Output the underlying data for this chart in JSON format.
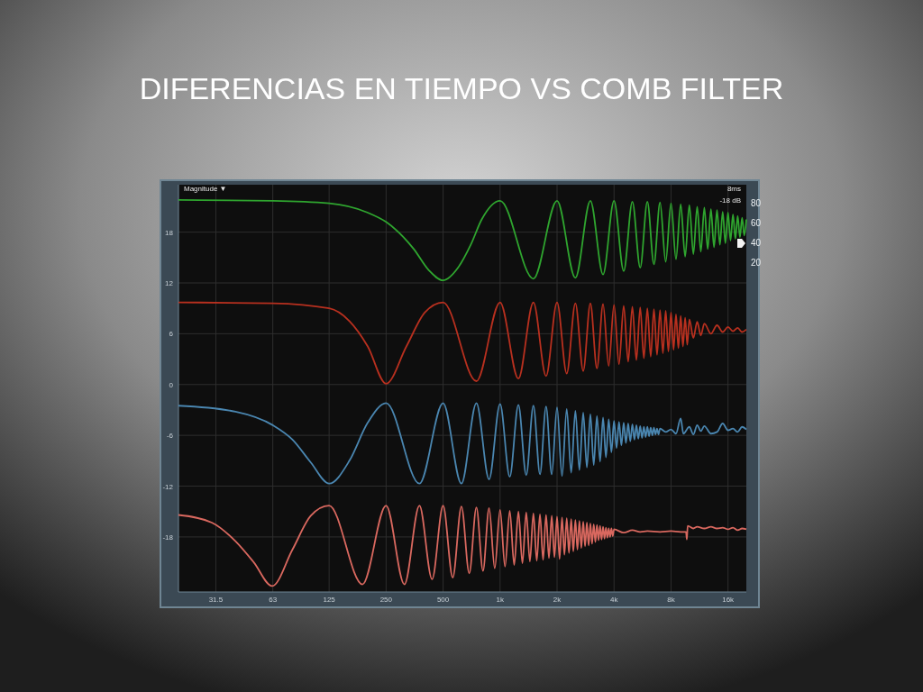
{
  "chart_data": {
    "type": "line",
    "title": "DIFERENCIAS EN TIEMPO VS COMB FILTER",
    "annotations": [
      "Magnitude ▼",
      "8ms",
      "-18 dB"
    ],
    "log": "x",
    "grid": true,
    "xlim": [
      20,
      20000
    ],
    "xticks": [
      31.5,
      63,
      125,
      250,
      500,
      {
        "value": 1000,
        "label": "1k"
      },
      {
        "value": 2000,
        "label": "2k"
      },
      {
        "value": 4000,
        "label": "4k"
      },
      {
        "value": 8000,
        "label": "8k"
      },
      {
        "value": 16000,
        "label": "16k"
      }
    ],
    "ylim": [
      -24.5,
      23.6
    ],
    "yticks": [
      -18,
      -12,
      -6,
      0,
      6,
      12,
      18
    ],
    "y2lim": [
      -312,
      99
    ],
    "y2ticks": [
      20,
      40,
      60,
      80
    ],
    "series": [
      {
        "color": "#2fa52f",
        "x": [
          20,
          63,
          125,
          200,
          250,
          350,
          420,
          500,
          600,
          700,
          800,
          1000,
          1500,
          2000,
          2500,
          3000,
          3500,
          4000,
          4500,
          5000,
          5500,
          6000,
          6500,
          7000,
          7500,
          8000,
          8500,
          9000,
          9500,
          10000,
          10500,
          11000,
          11500,
          12000,
          12500,
          13000,
          13500,
          14000,
          14500,
          15000,
          15500,
          16000,
          16500,
          17000,
          17500,
          18000,
          18500,
          19000,
          19500,
          20000
        ],
        "values": [
          21.8,
          21.7,
          21.4,
          20.3,
          19.2,
          16,
          13.5,
          12.3,
          13.8,
          16.5,
          19.5,
          21.7,
          12.5,
          21.7,
          12.6,
          21.7,
          13.0,
          21.7,
          13.4,
          21.6,
          13.8,
          21.6,
          14.2,
          21.5,
          14.5,
          21.4,
          14.8,
          21.3,
          15.1,
          21.2,
          15.4,
          21.0,
          15.7,
          20.9,
          16.0,
          20.7,
          16.2,
          20.6,
          16.5,
          20.4,
          16.7,
          20.3,
          17.0,
          20.1,
          17.2,
          19.9,
          17.4,
          19.7,
          17.6,
          19.5
        ]
      },
      {
        "color": "#b8301f",
        "x": [
          20,
          63,
          125,
          160,
          200,
          250,
          320,
          400,
          500,
          750,
          1000,
          1250,
          1500,
          1750,
          2000,
          2250,
          2500,
          2750,
          3000,
          3250,
          3500,
          3750,
          4000,
          4250,
          4500,
          4750,
          5000,
          5250,
          5500,
          5750,
          6000,
          6250,
          6500,
          6750,
          7000,
          7250,
          7500,
          7750,
          8000,
          8250,
          8500,
          8750,
          9000,
          9250,
          9500,
          9750,
          10000,
          10500,
          11000,
          11500,
          12000,
          13000,
          14000,
          15000,
          16000,
          17000,
          18000,
          19000,
          20000
        ],
        "values": [
          9.7,
          9.6,
          9.0,
          7.5,
          4.5,
          0.1,
          4.5,
          8.5,
          9.7,
          0.4,
          9.7,
          0.7,
          9.7,
          1.0,
          9.7,
          1.3,
          9.6,
          1.6,
          9.6,
          1.9,
          9.5,
          2.2,
          9.4,
          2.4,
          9.3,
          2.7,
          9.2,
          2.9,
          9.1,
          3.1,
          9.0,
          3.3,
          8.9,
          3.5,
          8.8,
          3.7,
          8.7,
          3.9,
          8.5,
          4.1,
          8.3,
          4.3,
          8.1,
          4.5,
          7.9,
          4.7,
          7.7,
          5.5,
          7.4,
          5.8,
          7.2,
          6.0,
          7.0,
          6.2,
          6.8,
          6.3,
          6.7,
          6.2,
          6.5
        ]
      },
      {
        "color": "#4a86b0",
        "x": [
          20,
          40,
          63,
          80,
          100,
          125,
          160,
          200,
          250,
          375,
          500,
          625,
          750,
          875,
          1000,
          1125,
          1250,
          1375,
          1500,
          1625,
          1750,
          1875,
          2000,
          2125,
          2250,
          2375,
          2500,
          2625,
          2750,
          2875,
          3000,
          3125,
          3250,
          3375,
          3500,
          3625,
          3750,
          3875,
          4000,
          4125,
          4250,
          4375,
          4500,
          4625,
          4750,
          4875,
          5000,
          5125,
          5250,
          5375,
          5500,
          5625,
          5750,
          5875,
          6000,
          6125,
          6250,
          6375,
          6500,
          6625,
          6750,
          6875,
          7000,
          7500,
          8000,
          8500,
          9000,
          9300,
          10000,
          10500,
          11000,
          11500,
          12000,
          13000,
          14000,
          15000,
          16000,
          17000,
          18000,
          19000,
          20000
        ],
        "values": [
          -2.5,
          -3.2,
          -4.8,
          -6.5,
          -9.2,
          -11.7,
          -9,
          -4.5,
          -2.2,
          -11.7,
          -2.2,
          -11.7,
          -2.2,
          -11.2,
          -2.3,
          -10.9,
          -2.4,
          -10.7,
          -2.5,
          -10.6,
          -2.6,
          -10.6,
          -2.7,
          -10.8,
          -2.9,
          -10.4,
          -3.1,
          -10.1,
          -3.3,
          -9.8,
          -3.5,
          -9.5,
          -3.7,
          -9.1,
          -3.9,
          -8.6,
          -4.1,
          -8.0,
          -4.3,
          -7.5,
          -4.4,
          -7.2,
          -4.5,
          -6.9,
          -4.6,
          -6.7,
          -4.7,
          -6.5,
          -4.8,
          -6.4,
          -4.9,
          -6.3,
          -5.0,
          -6.2,
          -5.0,
          -6.1,
          -5.1,
          -6.0,
          -5.1,
          -5.9,
          -5.2,
          -5.9,
          -5.2,
          -5.6,
          -5.3,
          -5.8,
          -4.0,
          -5.8,
          -5.0,
          -5.9,
          -4.8,
          -5.5,
          -4.9,
          -5.8,
          -5.6,
          -4.6,
          -5.4,
          -5.2,
          -5.6,
          -5.0,
          -5.3
        ]
      },
      {
        "color": "#d9685f",
        "x": [
          20,
          30,
          40,
          50,
          62.5,
          80,
          100,
          125,
          187.5,
          250,
          312.5,
          375,
          437.5,
          500,
          562.5,
          625,
          687.5,
          750,
          812.5,
          875,
          937.5,
          1000,
          1062.5,
          1125,
          1187.5,
          1250,
          1312.5,
          1375,
          1437.5,
          1500,
          1562.5,
          1625,
          1687.5,
          1750,
          1812.5,
          1875,
          1937.5,
          2000,
          2062.5,
          2125,
          2187.5,
          2250,
          2312.5,
          2375,
          2437.5,
          2500,
          2562.5,
          2625,
          2687.5,
          2750,
          2812.5,
          2875,
          2937.5,
          3000,
          3062.5,
          3125,
          3187.5,
          3250,
          3312.5,
          3375,
          3437.5,
          3500,
          3562.5,
          3625,
          3687.5,
          3750,
          3812.5,
          3875,
          3937.5,
          4000,
          4500,
          5000,
          5500,
          6000,
          7000,
          8000,
          9000,
          9600,
          9700,
          9800,
          10500,
          11000,
          12000,
          13000,
          14000,
          15000,
          16000,
          17000,
          18000,
          19000,
          20000
        ],
        "values": [
          -15.4,
          -16.3,
          -18.5,
          -21.0,
          -23.8,
          -19.5,
          -15.5,
          -14.3,
          -23.6,
          -14.3,
          -23.6,
          -14.3,
          -23.0,
          -14.3,
          -22.8,
          -14.4,
          -22.3,
          -14.5,
          -22.0,
          -14.6,
          -21.7,
          -14.8,
          -21.5,
          -14.9,
          -21.3,
          -15.0,
          -21.1,
          -15.1,
          -20.9,
          -15.2,
          -20.8,
          -15.3,
          -20.7,
          -15.4,
          -20.5,
          -15.5,
          -20.4,
          -15.6,
          -20.6,
          -15.7,
          -20.1,
          -15.8,
          -19.9,
          -15.9,
          -19.7,
          -16.0,
          -19.5,
          -16.1,
          -19.3,
          -16.2,
          -19.1,
          -16.3,
          -19.0,
          -16.4,
          -18.8,
          -16.5,
          -18.6,
          -16.6,
          -18.4,
          -16.7,
          -18.3,
          -16.8,
          -18.2,
          -16.9,
          -18.1,
          -17.0,
          -18.0,
          -17.0,
          -17.9,
          -17.1,
          -17.5,
          -17.2,
          -17.4,
          -17.3,
          -17.4,
          -17.3,
          -17.4,
          -17.4,
          -18.3,
          -16.7,
          -17.0,
          -16.8,
          -17.0,
          -16.8,
          -17.0,
          -16.9,
          -17.1,
          -16.9,
          -17.2,
          -17.0,
          -17.1
        ]
      }
    ]
  }
}
